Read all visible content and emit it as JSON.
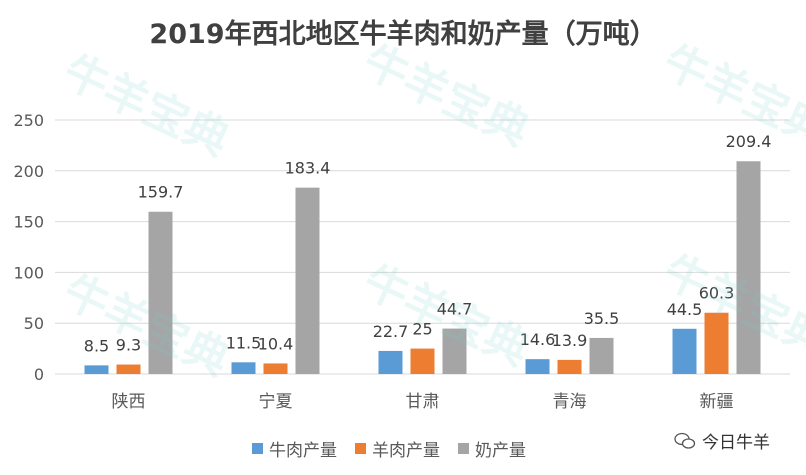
{
  "chart_data": {
    "type": "bar",
    "title": "2019年西北地区牛羊肉和奶产量（万吨）",
    "categories": [
      "陕西",
      "宁夏",
      "甘肃",
      "青海",
      "新疆"
    ],
    "series": [
      {
        "name": "牛肉产量",
        "color": "#5B9BD5",
        "values": [
          8.5,
          11.5,
          22.7,
          14.6,
          44.5
        ]
      },
      {
        "name": "羊肉产量",
        "color": "#ED7D31",
        "values": [
          9.3,
          10.4,
          25,
          13.9,
          60.3
        ]
      },
      {
        "name": "奶产量",
        "color": "#A5A5A5",
        "values": [
          159.7,
          183.4,
          44.7,
          35.5,
          209.4
        ]
      }
    ],
    "xlabel": "",
    "ylabel": "",
    "ylim": [
      0,
      250
    ],
    "yticks": [
      0,
      50,
      100,
      150,
      200,
      250
    ],
    "grid": true,
    "legend_position": "bottom"
  },
  "watermark": "牛羊宝典",
  "logo_text": "今日牛羊"
}
